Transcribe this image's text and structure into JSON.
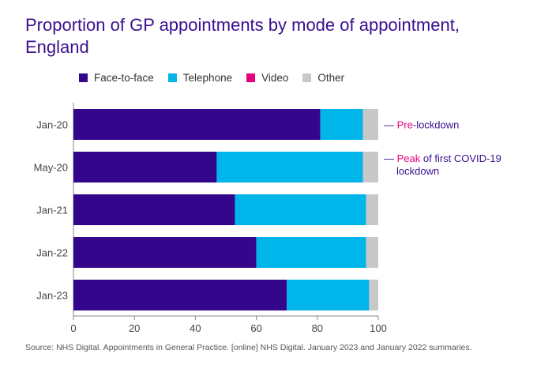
{
  "title": "Proportion of GP appointments by mode of appointment, England",
  "source": "Source: NHS Digital. Appointments in General Practice. [online] NHS Digital. January 2023 and January 2022 summaries.",
  "colors": {
    "face_to_face": "#34068c",
    "telephone": "#00b5ea",
    "video": "#e6007e",
    "other": "#c8c8c8",
    "annotation_accent": "#e6007e",
    "annotation_text": "#3a0f8f"
  },
  "annotations": [
    {
      "category": "Jan-20",
      "dash": "—",
      "accent": "Pre",
      "rest": "-lockdown",
      "line2": ""
    },
    {
      "category": "May-20",
      "dash": "—",
      "accent": "Peak",
      "rest": " of first COVID-19",
      "line2": "lockdown"
    }
  ],
  "chart_data": {
    "type": "bar",
    "orientation": "horizontal",
    "stacked": true,
    "categories": [
      "Jan-20",
      "May-20",
      "Jan-21",
      "Jan-22",
      "Jan-23"
    ],
    "series": [
      {
        "name": "Face-to-face",
        "values": [
          81,
          47,
          53,
          60,
          70
        ]
      },
      {
        "name": "Telephone",
        "values": [
          14,
          48,
          43,
          36,
          27
        ]
      },
      {
        "name": "Video",
        "values": [
          0,
          0,
          0,
          0,
          0
        ]
      },
      {
        "name": "Other",
        "values": [
          5,
          5,
          4,
          4,
          3
        ]
      }
    ],
    "xlim": [
      0,
      100
    ],
    "xticks": [
      "0",
      "20",
      "40",
      "60",
      "80",
      "100"
    ],
    "xlabel": "",
    "ylabel": "",
    "legend_position": "top",
    "grid": false
  }
}
